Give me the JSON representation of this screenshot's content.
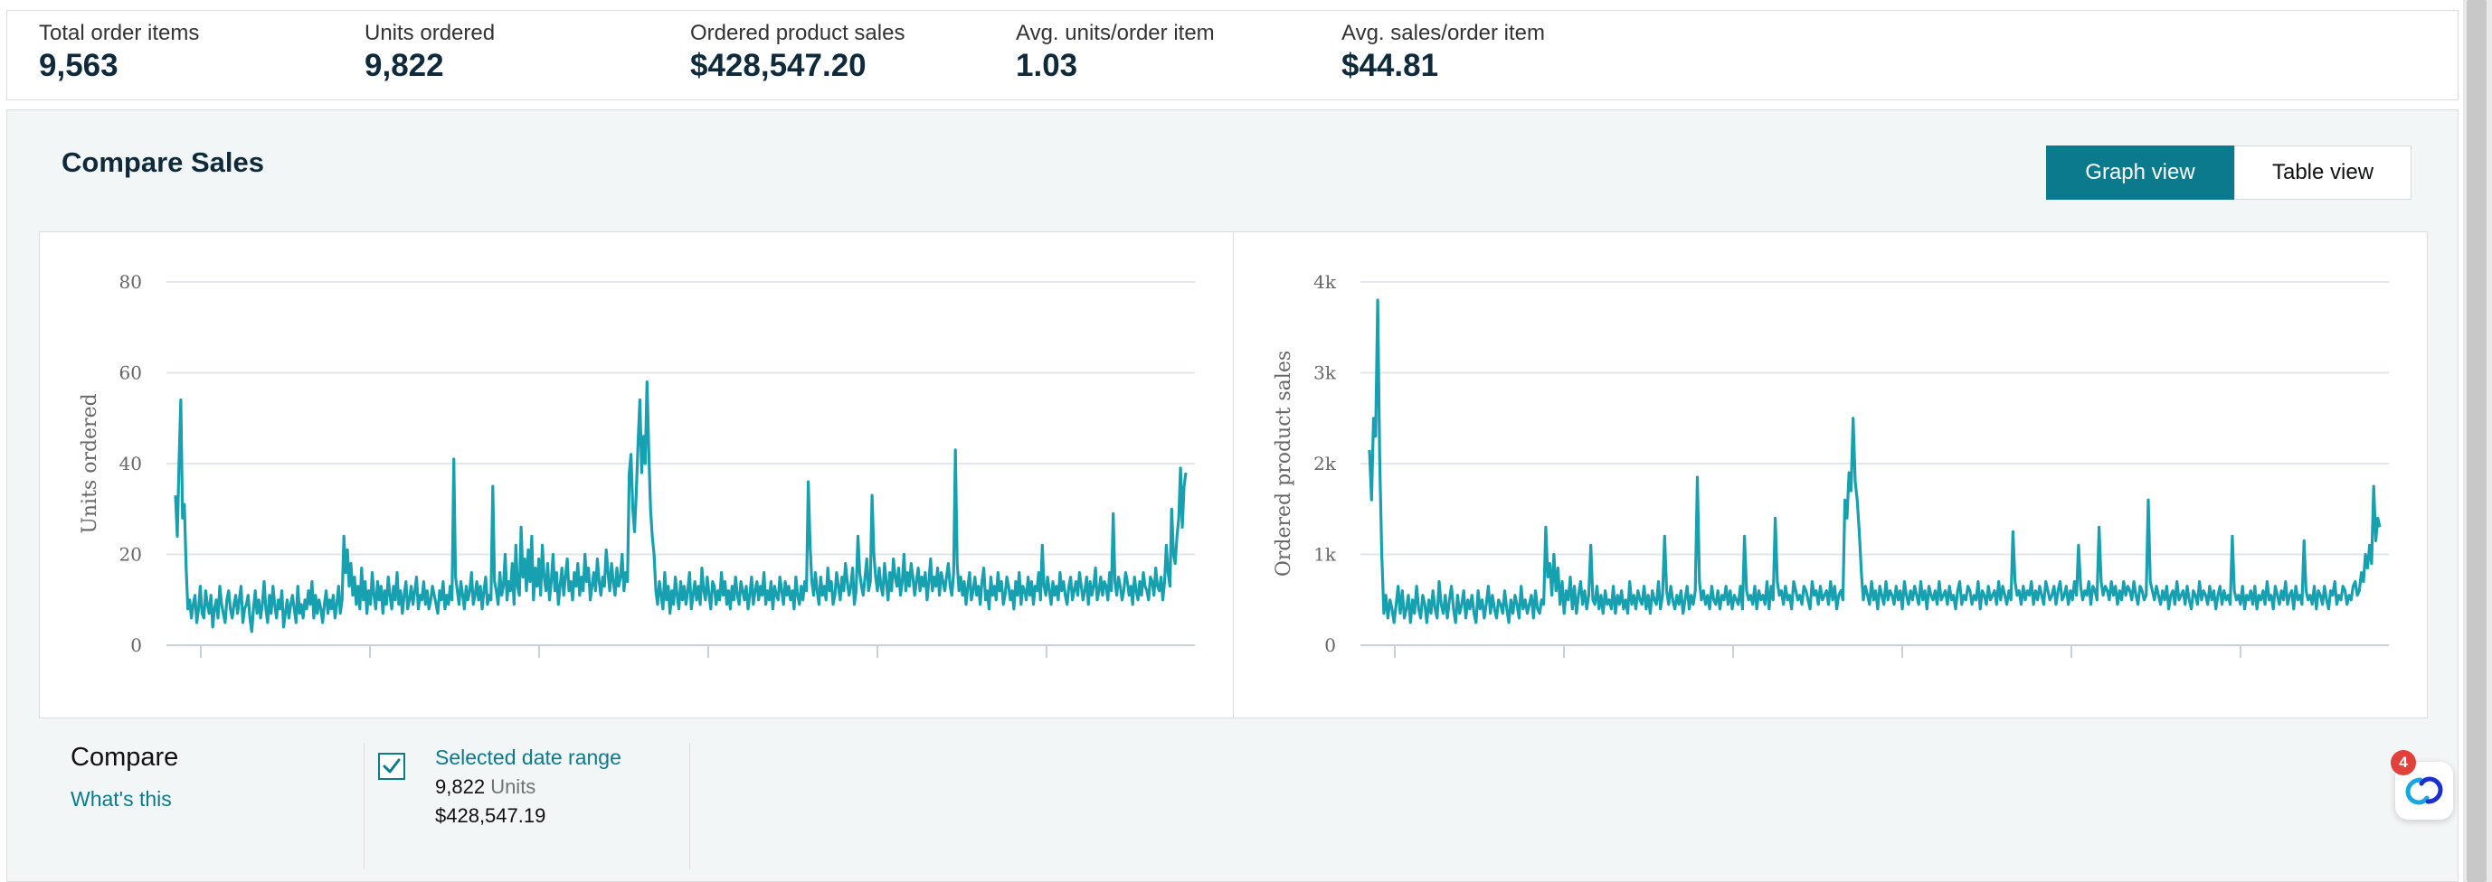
{
  "metrics": [
    {
      "label": "Total order items",
      "value": "9,563"
    },
    {
      "label": "Units ordered",
      "value": "9,822"
    },
    {
      "label": "Ordered product sales",
      "value": "$428,547.20"
    },
    {
      "label": "Avg. units/order item",
      "value": "1.03"
    },
    {
      "label": "Avg. sales/order item",
      "value": "$44.81"
    }
  ],
  "section": {
    "title": "Compare Sales",
    "graph_view_label": "Graph view",
    "table_view_label": "Table view"
  },
  "compare": {
    "title": "Compare",
    "whats_this": "What's this",
    "selected_range": {
      "name": "Selected date range",
      "units_value": "9,822",
      "units_label": "Units",
      "sales_value": "$428,547.19",
      "checked": true
    }
  },
  "chat": {
    "badge_count": "4"
  },
  "colors": {
    "accent": "#0a7a8c",
    "series": "#16a0b0",
    "grid": "#e3e6ea",
    "badge": "#e0413a"
  },
  "chart_data": [
    {
      "type": "line",
      "ylabel": "Units ordered",
      "ylim": [
        0,
        80
      ],
      "yticks": [
        "0",
        "20",
        "40",
        "60",
        "80"
      ],
      "grid": true,
      "series": [
        {
          "values": [
            33,
            24,
            40,
            54,
            28,
            31,
            17,
            8,
            10,
            6,
            9,
            11,
            5,
            8,
            13,
            7,
            6,
            12,
            9,
            7,
            11,
            4,
            8,
            10,
            6,
            13,
            9,
            7,
            5,
            10,
            12,
            8,
            6,
            9,
            11,
            7,
            10,
            13,
            5,
            8,
            9,
            11,
            6,
            3,
            8,
            12,
            7,
            10,
            6,
            9,
            14,
            8,
            5,
            11,
            7,
            13,
            9,
            6,
            10,
            8,
            12,
            4,
            7,
            10,
            6,
            9,
            11,
            8,
            5,
            13,
            7,
            9,
            6,
            10,
            8,
            12,
            9,
            14,
            6,
            11,
            7,
            10,
            8,
            5,
            9,
            12,
            7,
            10,
            8,
            11,
            6,
            9,
            13,
            7,
            10,
            24,
            16,
            21,
            13,
            18,
            11,
            15,
            9,
            13,
            8,
            17,
            10,
            14,
            7,
            12,
            9,
            16,
            11,
            8,
            14,
            10,
            13,
            7,
            12,
            9,
            15,
            11,
            8,
            13,
            10,
            16,
            9,
            12,
            7,
            11,
            14,
            8,
            10,
            13,
            9,
            12,
            15,
            8,
            11,
            10,
            14,
            9,
            12,
            8,
            10,
            13,
            11,
            9,
            7,
            12,
            10,
            14,
            8,
            11,
            9,
            13,
            10,
            41,
            15,
            12,
            9,
            14,
            11,
            8,
            13,
            10,
            12,
            16,
            9,
            11,
            14,
            10,
            13,
            8,
            12,
            15,
            9,
            11,
            10,
            35,
            14,
            12,
            9,
            16,
            11,
            13,
            20,
            10,
            14,
            12,
            18,
            9,
            22,
            13,
            11,
            26,
            15,
            19,
            12,
            21,
            14,
            24,
            10,
            17,
            13,
            19,
            11,
            22,
            15,
            12,
            18,
            10,
            14,
            20,
            12,
            16,
            9,
            13,
            17,
            11,
            15,
            19,
            12,
            14,
            10,
            16,
            13,
            18,
            11,
            15,
            12,
            20,
            14,
            17,
            10,
            13,
            16,
            12,
            19,
            14,
            11,
            15,
            13,
            21,
            16,
            12,
            18,
            14,
            11,
            17,
            13,
            15,
            20,
            12,
            16,
            14,
            38,
            42,
            30,
            25,
            34,
            45,
            54,
            38,
            46,
            40,
            58,
            43,
            30,
            24,
            20,
            12,
            9,
            14,
            11,
            8,
            16,
            10,
            13,
            7,
            12,
            9,
            15,
            11,
            8,
            14,
            10,
            13,
            9,
            12,
            16,
            8,
            11,
            14,
            10,
            13,
            9,
            17,
            12,
            10,
            15,
            11,
            8,
            14,
            13,
            9,
            12,
            10,
            16,
            11,
            14,
            9,
            12,
            8,
            13,
            10,
            15,
            11,
            9,
            14,
            12,
            10,
            13,
            8,
            11,
            15,
            9,
            12,
            14,
            10,
            13,
            11,
            16,
            9,
            12,
            10,
            14,
            8,
            13,
            11,
            10,
            15,
            12,
            9,
            14,
            11,
            13,
            10,
            12,
            8,
            15,
            11,
            9,
            13,
            10,
            14,
            12,
            36,
            22,
            14,
            11,
            16,
            12,
            9,
            15,
            11,
            13,
            10,
            17,
            12,
            14,
            9,
            11,
            16,
            13,
            10,
            15,
            12,
            18,
            14,
            11,
            13,
            17,
            9,
            12,
            24,
            16,
            13,
            11,
            15,
            19,
            12,
            14,
            33,
            20,
            15,
            12,
            17,
            13,
            11,
            18,
            14,
            10,
            16,
            12,
            19,
            15,
            13,
            17,
            11,
            14,
            20,
            12,
            16,
            13,
            18,
            15,
            11,
            14,
            17,
            12,
            15,
            13,
            16,
            10,
            14,
            19,
            12,
            15,
            13,
            17,
            11,
            16,
            14,
            12,
            15,
            18,
            13,
            11,
            16,
            43,
            18,
            12,
            15,
            11,
            14,
            9,
            13,
            16,
            10,
            12,
            15,
            11,
            13,
            9,
            14,
            17,
            10,
            12,
            8,
            15,
            11,
            13,
            10,
            16,
            12,
            14,
            9,
            11,
            15,
            13,
            10,
            12,
            8,
            14,
            11,
            16,
            9,
            13,
            12,
            10,
            15,
            11,
            14,
            9,
            13,
            12,
            16,
            10,
            22,
            13,
            11,
            15,
            12,
            9,
            14,
            11,
            13,
            10,
            16,
            12,
            14,
            11,
            9,
            13,
            15,
            10,
            12,
            14,
            11,
            16,
            13,
            10,
            12,
            15,
            9,
            14,
            11,
            13,
            17,
            10,
            12,
            15,
            11,
            14,
            13,
            10,
            16,
            12,
            29,
            14,
            11,
            15,
            13,
            10,
            12,
            16,
            14,
            11,
            13,
            9,
            15,
            12,
            10,
            14,
            11,
            16,
            13,
            12,
            10,
            15,
            14,
            11,
            17,
            13,
            12,
            15,
            10,
            14,
            22,
            16,
            13,
            30,
            20,
            18,
            24,
            28,
            39,
            26,
            35,
            38
          ]
        }
      ]
    },
    {
      "type": "line",
      "ylabel": "Ordered product sales",
      "ylim": [
        0,
        4000
      ],
      "yticks": [
        "0",
        "1k",
        "2k",
        "3k",
        "4k"
      ],
      "grid": true,
      "series": [
        {
          "values": [
            2150,
            1600,
            2500,
            2300,
            3800,
            2050,
            1000,
            350,
            550,
            300,
            500,
            400,
            250,
            450,
            650,
            350,
            600,
            300,
            400,
            550,
            250,
            500,
            350,
            650,
            400,
            300,
            550,
            450,
            250,
            500,
            350,
            600,
            400,
            300,
            700,
            450,
            350,
            550,
            300,
            500,
            650,
            400,
            250,
            550,
            350,
            450,
            600,
            300,
            500,
            400,
            550,
            350,
            250,
            600,
            400,
            500,
            300,
            450,
            650,
            350,
            550,
            400,
            300,
            500,
            450,
            350,
            600,
            400,
            250,
            500,
            350,
            550,
            450,
            300,
            650,
            400,
            500,
            350,
            450,
            550,
            300,
            600,
            400,
            350,
            500,
            450,
            1300,
            750,
            900,
            550,
            1000,
            600,
            850,
            450,
            700,
            350,
            600,
            500,
            750,
            400,
            650,
            350,
            550,
            700,
            450,
            600,
            400,
            550,
            1100,
            500,
            450,
            650,
            400,
            550,
            350,
            600,
            450,
            500,
            400,
            650,
            350,
            550,
            450,
            600,
            400,
            500,
            350,
            700,
            450,
            550,
            400,
            600,
            500,
            450,
            650,
            400,
            550,
            350,
            600,
            500,
            450,
            700,
            400,
            550,
            1200,
            600,
            450,
            650,
            500,
            400,
            550,
            450,
            600,
            350,
            500,
            650,
            400,
            550,
            450,
            600,
            1850,
            700,
            500,
            600,
            450,
            550,
            400,
            650,
            500,
            450,
            600,
            400,
            550,
            500,
            650,
            450,
            600,
            400,
            550,
            500,
            450,
            650,
            400,
            1200,
            600,
            500,
            550,
            450,
            650,
            400,
            600,
            500,
            550,
            450,
            700,
            400,
            650,
            500,
            1400,
            700,
            550,
            600,
            450,
            650,
            500,
            550,
            400,
            700,
            600,
            500,
            550,
            450,
            650,
            600,
            500,
            400,
            700,
            550,
            600,
            450,
            650,
            500,
            550,
            600,
            450,
            700,
            500,
            650,
            400,
            550,
            600,
            500,
            1600,
            1400,
            1900,
            1700,
            2500,
            1800,
            1600,
            1250,
            800,
            500,
            650,
            550,
            450,
            700,
            500,
            600,
            400,
            650,
            550,
            450,
            700,
            500,
            600,
            550,
            450,
            650,
            500,
            600,
            400,
            700,
            550,
            450,
            600,
            500,
            650,
            550,
            450,
            700,
            500,
            600,
            400,
            650,
            550,
            500,
            600,
            450,
            700,
            500,
            550,
            600,
            450,
            650,
            500,
            550,
            400,
            600,
            700,
            450,
            550,
            500,
            650,
            600,
            450,
            550,
            500,
            700,
            400,
            600,
            550,
            450,
            650,
            500,
            550,
            600,
            450,
            700,
            500,
            650,
            550,
            450,
            600,
            500,
            1250,
            700,
            550,
            600,
            450,
            650,
            500,
            600,
            550,
            700,
            450,
            600,
            500,
            650,
            550,
            450,
            700,
            600,
            500,
            550,
            650,
            450,
            600,
            700,
            500,
            550,
            650,
            450,
            600,
            500,
            700,
            550,
            1100,
            650,
            500,
            600,
            550,
            700,
            450,
            650,
            600,
            500,
            1300,
            700,
            550,
            650,
            600,
            500,
            700,
            550,
            650,
            450,
            600,
            500,
            700,
            550,
            650,
            600,
            500,
            700,
            550,
            450,
            650,
            600,
            500,
            550,
            1600,
            700,
            600,
            500,
            650,
            550,
            450,
            600,
            500,
            650,
            400,
            550,
            600,
            450,
            700,
            500,
            550,
            600,
            450,
            650,
            500,
            400,
            600,
            550,
            450,
            700,
            500,
            600,
            550,
            450,
            650,
            500,
            600,
            400,
            550,
            650,
            450,
            600,
            500,
            550,
            450,
            1200,
            600,
            500,
            550,
            450,
            650,
            400,
            550,
            500,
            600,
            450,
            650,
            400,
            550,
            500,
            600,
            450,
            700,
            500,
            550,
            400,
            650,
            550,
            450,
            600,
            500,
            700,
            450,
            550,
            600,
            400,
            650,
            500,
            550,
            450,
            1150,
            600,
            500,
            550,
            450,
            650,
            400,
            600,
            550,
            450,
            650,
            500,
            400,
            600,
            550,
            700,
            450,
            550,
            500,
            650,
            600,
            450,
            550,
            500,
            650,
            700,
            550,
            600,
            800,
            700,
            1000,
            850,
            1100,
            900,
            1750,
            1150,
            1400,
            1300
          ]
        }
      ]
    }
  ]
}
